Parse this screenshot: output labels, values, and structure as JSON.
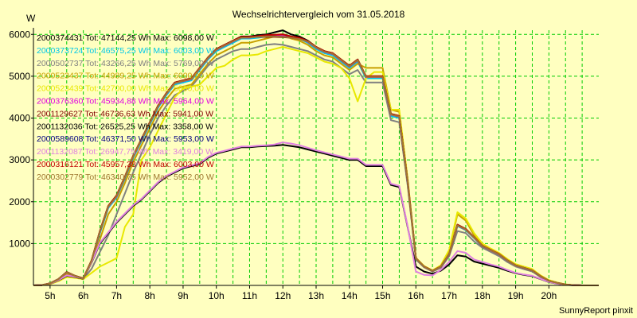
{
  "title": "Wechselrichtervergleich vom 31.05.2018",
  "y_unit": "W",
  "footer": "SunnyReport pinxit",
  "colors": {
    "background": "#ffffc0",
    "grid": "#00cc00",
    "axis": "#000000"
  },
  "chart_data": {
    "type": "line",
    "title": "Wechselrichtervergleich vom 31.05.2018",
    "xlabel": "",
    "ylabel": "W",
    "xlim": [
      4.5,
      21.5
    ],
    "ylim": [
      0,
      6100
    ],
    "grid": true,
    "legend_position": "top-left",
    "x_ticks": [
      5,
      6,
      7,
      8,
      9,
      10,
      11,
      12,
      13,
      14,
      15,
      16,
      17,
      18,
      19,
      20
    ],
    "x_tick_labels": [
      "5h",
      "6h",
      "7h",
      "8h",
      "9h",
      "10h",
      "11h",
      "12h",
      "13h",
      "14h",
      "15h",
      "16h",
      "17h",
      "18h",
      "19h",
      "20h"
    ],
    "y_ticks": [
      1000,
      2000,
      3000,
      4000,
      5000,
      6000
    ],
    "y_tick_labels": [
      "1000",
      "2000",
      "3000",
      "4000",
      "5000",
      "6000"
    ],
    "x": [
      4.5,
      4.75,
      5.0,
      5.25,
      5.5,
      5.75,
      6.0,
      6.25,
      6.5,
      6.75,
      7.0,
      7.25,
      7.5,
      7.75,
      8.0,
      8.25,
      8.5,
      8.75,
      9.0,
      9.25,
      9.5,
      9.75,
      10.0,
      10.25,
      10.5,
      10.75,
      11.0,
      11.25,
      11.5,
      11.75,
      12.0,
      12.25,
      12.5,
      12.75,
      13.0,
      13.25,
      13.5,
      13.75,
      14.0,
      14.25,
      14.5,
      14.75,
      15.0,
      15.25,
      15.5,
      15.75,
      16.0,
      16.25,
      16.5,
      16.75,
      17.0,
      17.25,
      17.5,
      17.75,
      18.0,
      18.25,
      18.5,
      18.75,
      19.0,
      19.25,
      19.5,
      19.75,
      20.0,
      20.25,
      20.5,
      20.75,
      21.0,
      21.25,
      21.5
    ],
    "series": [
      {
        "name": "2000374431 Tot: 47144,25 Wh Max: 6098,00 W",
        "color": "#000000",
        "values": [
          0,
          5,
          50,
          150,
          320,
          230,
          170,
          600,
          1300,
          1900,
          2150,
          2600,
          3100,
          3500,
          3900,
          4300,
          4600,
          4850,
          4900,
          4950,
          5200,
          5450,
          5650,
          5750,
          5850,
          5950,
          5950,
          5980,
          6000,
          6050,
          6098,
          6000,
          5950,
          5850,
          5700,
          5600,
          5550,
          5400,
          5250,
          5400,
          5000,
          5000,
          5000,
          4100,
          4050,
          2500,
          650,
          450,
          350,
          450,
          750,
          1450,
          1350,
          1150,
          950,
          850,
          750,
          600,
          480,
          420,
          360,
          220,
          110,
          60,
          20,
          5,
          0,
          0,
          0
        ]
      },
      {
        "name": "2000373724 Tot: 46575,25 Wh Max: 6003,00 W",
        "color": "#00c8e8",
        "values": [
          0,
          5,
          40,
          140,
          300,
          220,
          160,
          580,
          1250,
          1850,
          2100,
          2550,
          3050,
          3450,
          3850,
          4250,
          4550,
          4800,
          4850,
          4900,
          5150,
          5400,
          5600,
          5700,
          5800,
          5900,
          5900,
          5920,
          5950,
          5980,
          6003,
          5950,
          5900,
          5800,
          5650,
          5550,
          5500,
          5350,
          5200,
          5350,
          4950,
          4950,
          4950,
          4050,
          4000,
          2450,
          640,
          440,
          340,
          440,
          740,
          1420,
          1320,
          1130,
          930,
          830,
          730,
          590,
          470,
          410,
          350,
          210,
          100,
          55,
          18,
          5,
          0,
          0,
          0
        ]
      },
      {
        "name": "2000502737 Tot: 43266,25 Wh Max: 5769,00 W",
        "color": "#808080",
        "values": [
          0,
          5,
          40,
          120,
          250,
          200,
          150,
          400,
          800,
          1200,
          1700,
          2200,
          2700,
          3150,
          3600,
          4000,
          4300,
          4550,
          4650,
          4750,
          5000,
          5250,
          5400,
          5500,
          5600,
          5650,
          5650,
          5700,
          5750,
          5769,
          5750,
          5700,
          5650,
          5600,
          5500,
          5400,
          5350,
          5200,
          5050,
          5150,
          4850,
          4850,
          4850,
          3950,
          3900,
          2400,
          620,
          430,
          330,
          420,
          700,
          1300,
          1250,
          1050,
          900,
          800,
          700,
          560,
          450,
          390,
          330,
          200,
          95,
          50,
          15,
          5,
          0,
          0,
          0
        ]
      },
      {
        "name": "2000523437 Tot: 44989,25 Wh Max: 6000,00 W",
        "color": "#c8a000",
        "values": [
          0,
          5,
          45,
          130,
          280,
          210,
          160,
          550,
          1100,
          1700,
          2000,
          2450,
          2950,
          3350,
          3750,
          4150,
          4450,
          4700,
          4750,
          4800,
          5050,
          5300,
          5500,
          5600,
          5700,
          5800,
          5800,
          5850,
          5900,
          5950,
          6000,
          5900,
          5850,
          5750,
          5600,
          5500,
          5450,
          5300,
          5150,
          5300,
          5200,
          5200,
          5200,
          4200,
          4150,
          2550,
          660,
          460,
          360,
          470,
          820,
          1700,
          1550,
          1200,
          980,
          870,
          770,
          620,
          500,
          440,
          380,
          230,
          120,
          65,
          22,
          6,
          0,
          0,
          0
        ]
      },
      {
        "name": "2000523439 Tot: 42700,00 Wh Max: 5800,00 W",
        "color": "#e8e800",
        "values": [
          0,
          5,
          30,
          100,
          200,
          180,
          150,
          300,
          450,
          550,
          650,
          1400,
          1700,
          3000,
          3300,
          3700,
          4100,
          4500,
          4700,
          4750,
          4800,
          5000,
          5200,
          5250,
          5400,
          5500,
          5500,
          5520,
          5600,
          5650,
          5700,
          5650,
          5600,
          5550,
          5450,
          5350,
          5300,
          5200,
          4950,
          4400,
          4950,
          5100,
          5100,
          4200,
          4200,
          2550,
          660,
          460,
          360,
          480,
          850,
          1750,
          1600,
          1250,
          1000,
          880,
          780,
          630,
          510,
          450,
          390,
          240,
          125,
          70,
          25,
          6,
          0,
          0,
          0
        ]
      },
      {
        "name": "2000376360 Tot: 45934,88 Wh Max: 5964,00 W",
        "color": "#e000e0",
        "values": [
          0,
          5,
          50,
          145,
          310,
          225,
          165,
          590,
          1280,
          1880,
          2120,
          2580,
          3080,
          3480,
          3880,
          4280,
          4580,
          4830,
          4880,
          4930,
          5180,
          5430,
          5630,
          5730,
          5830,
          5920,
          5920,
          5950,
          5960,
          5964,
          5960,
          5930,
          5900,
          5820,
          5680,
          5580,
          5530,
          5380,
          5230,
          5380,
          4980,
          4980,
          4980,
          4080,
          4030,
          2480,
          645,
          445,
          345,
          445,
          745,
          1430,
          1330,
          1140,
          940,
          840,
          740,
          595,
          475,
          415,
          355,
          215,
          105,
          58,
          19,
          5,
          0,
          0,
          0
        ]
      },
      {
        "name": "2001129627 Tot: 46736,63 Wh Max: 5941,00 W",
        "color": "#800000",
        "values": [
          0,
          5,
          48,
          148,
          315,
          228,
          168,
          595,
          1290,
          1890,
          2140,
          2590,
          3090,
          3490,
          3890,
          4290,
          4590,
          4840,
          4890,
          4940,
          5190,
          5440,
          5640,
          5740,
          5840,
          5930,
          5930,
          5941,
          5941,
          5940,
          5935,
          5920,
          5890,
          5830,
          5690,
          5590,
          5540,
          5390,
          5240,
          5390,
          4990,
          4990,
          4990,
          4090,
          4040,
          2490,
          648,
          448,
          348,
          448,
          748,
          1440,
          1340,
          1145,
          945,
          845,
          745,
          598,
          478,
          418,
          358,
          218,
          108,
          59,
          19,
          5,
          0,
          0,
          0
        ]
      },
      {
        "name": "2001132036 Tot: 26525,25 Wh Max: 3358,00 W",
        "color": "#000000",
        "values": [
          0,
          5,
          40,
          120,
          230,
          200,
          160,
          550,
          1000,
          1250,
          1500,
          1700,
          1900,
          2050,
          2250,
          2450,
          2600,
          2700,
          2800,
          2850,
          2900,
          3050,
          3150,
          3200,
          3250,
          3300,
          3300,
          3320,
          3330,
          3340,
          3358,
          3330,
          3300,
          3250,
          3200,
          3150,
          3100,
          3050,
          3000,
          3000,
          2850,
          2850,
          2850,
          2400,
          2350,
          1400,
          450,
          330,
          280,
          350,
          500,
          720,
          690,
          570,
          520,
          470,
          420,
          350,
          290,
          250,
          220,
          150,
          80,
          40,
          12,
          4,
          0,
          0,
          0
        ]
      },
      {
        "name": "2000589608 Tot: 46371,50 Wh Max: 5953,00 W",
        "color": "#000080",
        "values": [
          0,
          5,
          50,
          150,
          315,
          228,
          168,
          596,
          1290,
          1890,
          2140,
          2590,
          3090,
          3490,
          3890,
          4290,
          4590,
          4840,
          4890,
          4940,
          5190,
          5440,
          5640,
          5740,
          5840,
          5930,
          5935,
          5950,
          5953,
          5950,
          5945,
          5925,
          5895,
          5835,
          5690,
          5590,
          5540,
          5390,
          5240,
          5390,
          4990,
          4990,
          4990,
          4090,
          4040,
          2490,
          648,
          448,
          348,
          448,
          748,
          1440,
          1340,
          1145,
          945,
          845,
          745,
          598,
          478,
          418,
          358,
          218,
          108,
          59,
          19,
          5,
          0,
          0,
          0
        ]
      },
      {
        "name": "2001132087 Tot: 26947,75 Wh Max: 3419,00 W",
        "color": "#e080e0",
        "values": [
          0,
          5,
          42,
          125,
          240,
          205,
          165,
          560,
          1020,
          1270,
          1520,
          1720,
          1920,
          2070,
          2270,
          2470,
          2620,
          2720,
          2820,
          2870,
          2920,
          3070,
          3170,
          3220,
          3270,
          3320,
          3320,
          3340,
          3350,
          3370,
          3419,
          3390,
          3350,
          3290,
          3230,
          3180,
          3130,
          3080,
          3030,
          3030,
          2880,
          2880,
          2880,
          2430,
          2380,
          1420,
          330,
          250,
          240,
          370,
          560,
          820,
          780,
          620,
          560,
          500,
          450,
          370,
          300,
          260,
          230,
          155,
          85,
          42,
          13,
          4,
          0,
          0,
          0
        ]
      },
      {
        "name": "2000316121 Tot: 45957,38 Wh Max: 6003,00 W",
        "color": "#c00000",
        "values": [
          0,
          5,
          50,
          150,
          318,
          230,
          170,
          600,
          1300,
          1900,
          2150,
          2600,
          3100,
          3500,
          3900,
          4300,
          4600,
          4850,
          4900,
          4950,
          5200,
          5450,
          5650,
          5750,
          5850,
          5940,
          5940,
          5960,
          5980,
          5990,
          6003,
          5950,
          5920,
          5840,
          5700,
          5600,
          5550,
          5400,
          5250,
          5400,
          5000,
          5000,
          5000,
          4100,
          4050,
          2500,
          650,
          450,
          350,
          450,
          750,
          1450,
          1350,
          1150,
          950,
          850,
          750,
          600,
          480,
          420,
          360,
          220,
          110,
          60,
          20,
          5,
          0,
          0,
          0
        ]
      },
      {
        "name": "2000302779 Tot: 46340,75 Wh Max: 5952,00 W",
        "color": "#a07830",
        "values": [
          0,
          5,
          48,
          146,
          312,
          226,
          166,
          592,
          1285,
          1885,
          2130,
          2585,
          3085,
          3485,
          3885,
          4285,
          4585,
          4835,
          4885,
          4935,
          5185,
          5435,
          5635,
          5735,
          5835,
          5920,
          5925,
          5940,
          5952,
          5950,
          5945,
          5920,
          5890,
          5830,
          5685,
          5585,
          5535,
          5385,
          5235,
          5385,
          4985,
          4985,
          4985,
          4085,
          4035,
          2485,
          646,
          446,
          346,
          446,
          746,
          1435,
          1335,
          1142,
          942,
          842,
          742,
          596,
          476,
          416,
          356,
          216,
          106,
          58,
          19,
          5,
          0,
          0,
          0
        ]
      }
    ]
  }
}
